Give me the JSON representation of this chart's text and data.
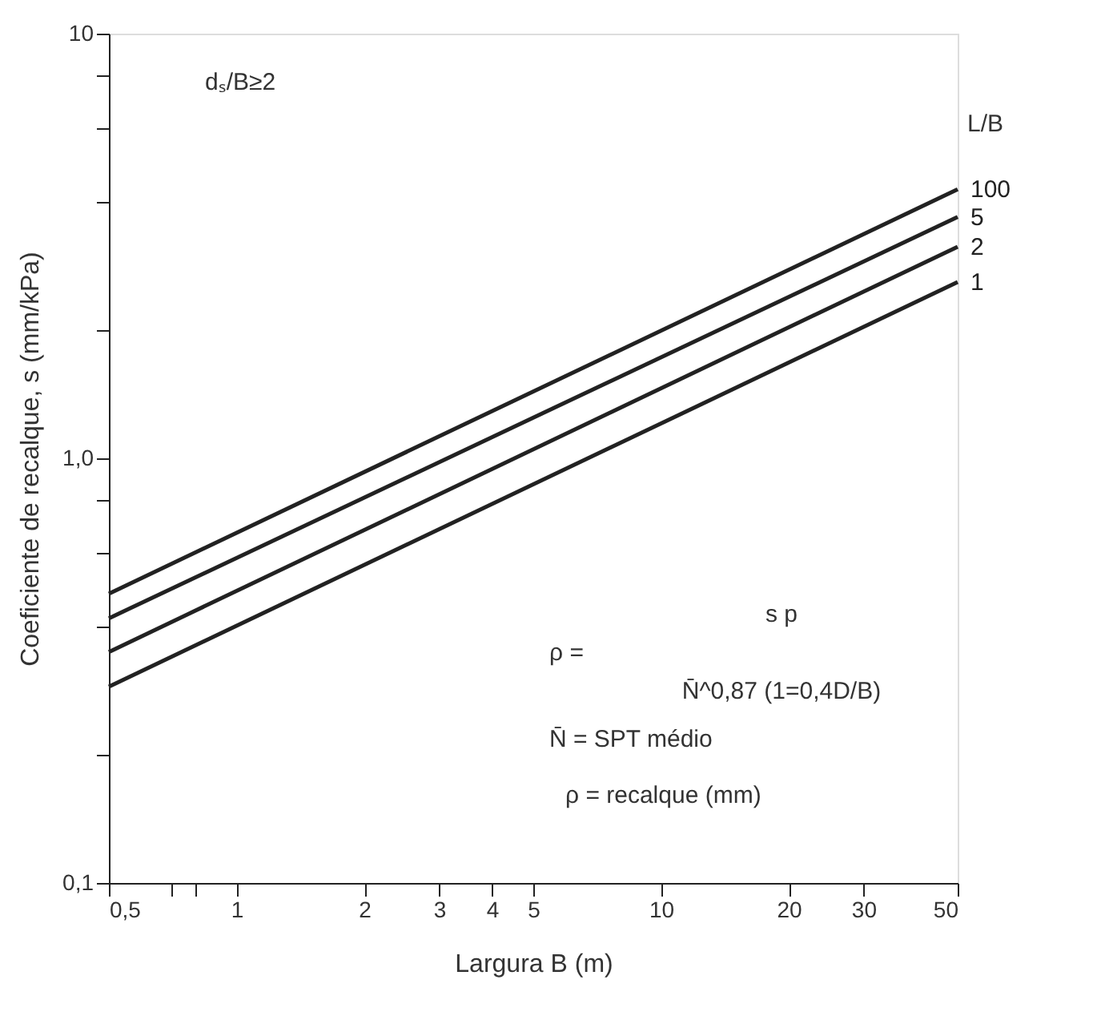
{
  "chart_data": {
    "type": "line",
    "xlabel": "Largura B (m)",
    "ylabel": "Coeficiente de recalque, s (mm/kPa)",
    "legend_title": "L/B",
    "x": [
      0.5,
      50
    ],
    "series": [
      {
        "name": "100",
        "color": "#222222",
        "values": [
          0.48,
          4.3
        ]
      },
      {
        "name": "5",
        "color": "#222222",
        "values": [
          0.42,
          3.7
        ]
      },
      {
        "name": "2",
        "color": "#222222",
        "values": [
          0.35,
          3.15
        ]
      },
      {
        "name": "1",
        "color": "#222222",
        "values": [
          0.29,
          2.6
        ]
      }
    ],
    "log": "xy",
    "xlim": [
      0.5,
      50
    ],
    "ylim": [
      0.1,
      10
    ],
    "xticks": [
      {
        "value": 0.5,
        "label": "0,5"
      },
      {
        "value": 0.7,
        "label": null
      },
      {
        "value": 0.8,
        "label": null
      },
      1,
      2,
      3,
      4,
      5,
      10,
      20,
      30,
      {
        "value": 50,
        "label": "50"
      }
    ],
    "yticks": [
      {
        "value": 0.1,
        "label": "0,1"
      },
      {
        "value": 0.2,
        "label": null
      },
      {
        "value": 0.4,
        "label": null
      },
      {
        "value": 0.6,
        "label": null
      },
      {
        "value": 0.8,
        "label": null
      },
      {
        "value": 1,
        "label": "1,0"
      },
      {
        "value": 2,
        "label": null
      },
      {
        "value": 4,
        "label": null
      },
      {
        "value": 6,
        "label": null
      },
      {
        "value": 8,
        "label": null
      },
      10
    ],
    "annotations": [
      "dₛ/B≥2",
      "s p",
      "ρ =",
      "N̄^0,87 (1=0,4D/B)",
      "N̄ = SPT médio",
      "ρ = recalque (mm)"
    ],
    "grid": false,
    "legend": false,
    "marker": "none",
    "line_style": "solid"
  }
}
